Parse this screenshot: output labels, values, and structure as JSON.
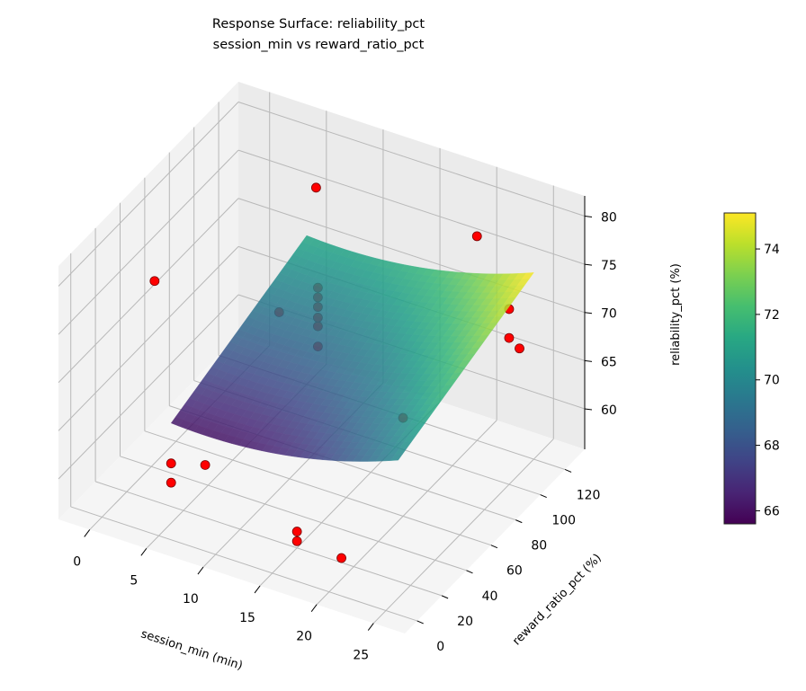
{
  "chart_data": {
    "type": "surface",
    "title": "Response Surface: reliability_pct",
    "subtitle": "session_min vs reward_ratio_pct",
    "xlabel": "session_min (min)",
    "ylabel": "reward_ratio_pct (%)",
    "zlabel": "reliability_pct (%)",
    "colorbar_label": "reliability_pct (%)",
    "colormap": "viridis",
    "xlim": [
      -2.75,
      27.75
    ],
    "ylim": [
      -10,
      136
    ],
    "zlim": [
      55.8,
      82.1
    ],
    "xticks": [
      0,
      5,
      10,
      15,
      20,
      25
    ],
    "yticks": [
      0,
      20,
      40,
      60,
      80,
      100,
      120
    ],
    "zticks": [
      60,
      65,
      70,
      75,
      80
    ],
    "colorbar_ticks": [
      66,
      68,
      70,
      72,
      74
    ],
    "colorbar_range": [
      65.6,
      75.1
    ],
    "grid": true,
    "surface": {
      "x_range": [
        5,
        25
      ],
      "y_range": [
        10,
        120
      ],
      "model": "z = 65.6 + 0.046*y + 0.014*(x-8)^2"
    },
    "scatter_color": "#ff0000",
    "points": [
      [
        3,
        15,
        79.5
      ],
      [
        8,
        100,
        80
      ],
      [
        20,
        120,
        77
      ],
      [
        25,
        100,
        74
      ],
      [
        27,
        90,
        72
      ],
      [
        25,
        100,
        71
      ],
      [
        5,
        10,
        60
      ],
      [
        5,
        10,
        62
      ],
      [
        8,
        10,
        63
      ],
      [
        15,
        20,
        57.5
      ],
      [
        15,
        20,
        56.5
      ],
      [
        20,
        10,
        58
      ],
      [
        12.5,
        60,
        70.5
      ],
      [
        12.5,
        60,
        72.6
      ],
      [
        12.5,
        60,
        73.5
      ],
      [
        12.5,
        60,
        74.6
      ],
      [
        12.5,
        60,
        75.6
      ],
      [
        12.5,
        60,
        76.6
      ],
      [
        8,
        70,
        71
      ],
      [
        20,
        60,
        66
      ]
    ]
  }
}
